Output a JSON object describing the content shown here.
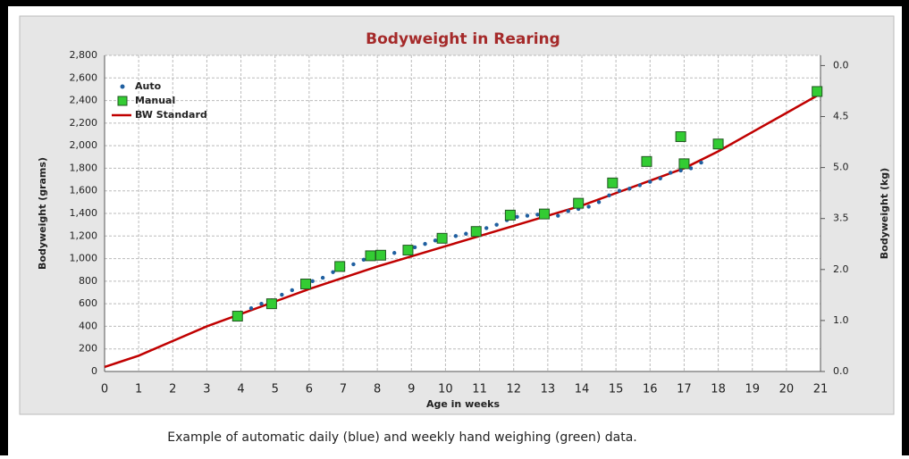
{
  "chart_data": {
    "type": "line",
    "title": "Bodyweight in Rearing",
    "xlabel": "Age in weeks",
    "ylabel": "Bodyweight (grams)",
    "y2label": "Bodyweight (kg)",
    "caption": "Example of automatic daily (blue) and weekly hand weighing (green) data.",
    "xlim": [
      0,
      21
    ],
    "xticks": [
      0,
      1,
      2,
      3,
      4,
      5,
      6,
      7,
      8,
      9,
      10,
      11,
      12,
      13,
      14,
      15,
      16,
      17,
      18,
      19,
      20,
      21
    ],
    "ylim": [
      0,
      2800
    ],
    "yticks": [
      0,
      200,
      400,
      600,
      800,
      {
        "value": 1000,
        "label": "1,000"
      },
      {
        "value": 1200,
        "label": "1,200"
      },
      {
        "value": 1400,
        "label": "1,400"
      },
      {
        "value": 1600,
        "label": "1,600"
      },
      {
        "value": 1800,
        "label": "1,800"
      },
      {
        "value": 2000,
        "label": "2,000"
      },
      {
        "value": 2200,
        "label": "2,200"
      },
      {
        "value": 2400,
        "label": "2,400"
      },
      {
        "value": 2600,
        "label": "2,600"
      },
      {
        "value": 2800,
        "label": "2,800"
      }
    ],
    "y2lim": [
      0,
      6.2
    ],
    "y2ticks": [
      {
        "value": 0,
        "label": "0.0"
      },
      {
        "value": 1,
        "label": "1.0"
      },
      {
        "value": 2,
        "label": "2.0"
      },
      {
        "value": 3,
        "label": "3.5"
      },
      {
        "value": 4,
        "label": "5.0"
      },
      {
        "value": 5,
        "label": "4.5"
      },
      {
        "value": 6,
        "label": "0.0"
      }
    ],
    "grid": true,
    "legend": "upper left",
    "series": [
      {
        "name": "Auto",
        "color": "#1f5fa0",
        "marker": "dot",
        "x": [
          4.0,
          4.3,
          4.6,
          4.9,
          5.2,
          5.5,
          5.8,
          6.1,
          6.4,
          6.7,
          7.0,
          7.3,
          7.6,
          7.9,
          8.2,
          8.5,
          8.8,
          9.1,
          9.4,
          9.7,
          10.0,
          10.3,
          10.6,
          10.9,
          11.2,
          11.5,
          11.8,
          12.1,
          12.4,
          12.7,
          13.0,
          13.3,
          13.6,
          13.9,
          14.2,
          14.5,
          14.8,
          15.1,
          15.4,
          15.7,
          16.0,
          16.3,
          16.6,
          16.9,
          17.2,
          17.5
        ],
        "values": [
          510,
          560,
          600,
          630,
          680,
          720,
          760,
          800,
          830,
          880,
          920,
          950,
          990,
          1010,
          1030,
          1050,
          1070,
          1100,
          1130,
          1160,
          1180,
          1200,
          1220,
          1240,
          1270,
          1300,
          1340,
          1370,
          1380,
          1390,
          1390,
          1380,
          1420,
          1440,
          1460,
          1500,
          1560,
          1600,
          1620,
          1650,
          1680,
          1710,
          1760,
          1780,
          1800,
          1850
        ]
      },
      {
        "name": "Manual",
        "color": "#33cc33",
        "marker": "square",
        "x": [
          3.9,
          4.9,
          5.9,
          6.9,
          7.8,
          8.1,
          8.9,
          9.9,
          10.9,
          11.9,
          12.9,
          13.9,
          14.9,
          15.9,
          16.9,
          17.0,
          18.0,
          20.9
        ],
        "values": [
          490,
          600,
          775,
          930,
          1025,
          1030,
          1075,
          1180,
          1240,
          1385,
          1395,
          1490,
          1670,
          1860,
          2080,
          1840,
          2015,
          2480
        ]
      },
      {
        "name": "BW Standard",
        "color": "#c00000",
        "marker": "line",
        "x": [
          0,
          1,
          2,
          3,
          4,
          5,
          6,
          7,
          8,
          9,
          10,
          11,
          12,
          13,
          14,
          15,
          16,
          17,
          18,
          19,
          20,
          21
        ],
        "values": [
          40,
          140,
          270,
          400,
          510,
          620,
          730,
          830,
          930,
          1020,
          1110,
          1200,
          1290,
          1380,
          1470,
          1580,
          1690,
          1800,
          1950,
          2120,
          2290,
          2460
        ]
      }
    ]
  }
}
